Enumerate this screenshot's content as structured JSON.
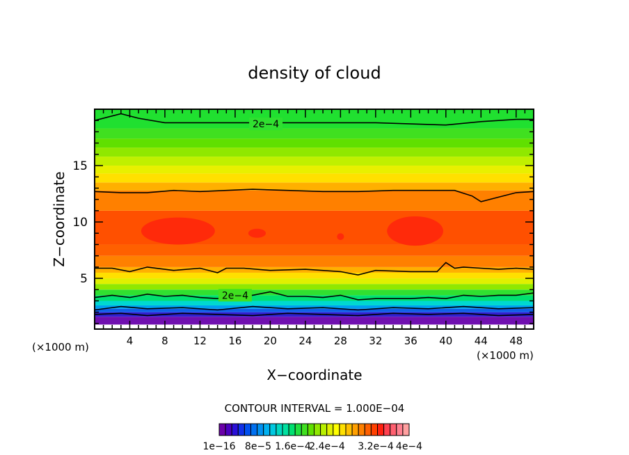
{
  "chart_data": {
    "type": "heatmap",
    "title": "density of cloud",
    "xlabel": "X−coordinate",
    "ylabel": "Z−coordinate",
    "x_unit": "(×1000 m)",
    "y_unit": "(×1000 m)",
    "xlim": [
      0,
      50
    ],
    "ylim": [
      0.5,
      20
    ],
    "x_ticks": [
      4,
      8,
      12,
      16,
      20,
      24,
      28,
      32,
      36,
      40,
      44,
      48
    ],
    "y_ticks": [
      5,
      10,
      15
    ],
    "contour_interval": "CONTOUR INTERVAL = 1.000E−04",
    "contour_labels": [
      {
        "text": "2e−4",
        "x": 19.5,
        "z": 18.7
      },
      {
        "text": "2e−4",
        "x": 16,
        "z": 3.5
      }
    ],
    "colorbar": {
      "labels": [
        "1e−16",
        "8e−5",
        "1.6e−4",
        "2.4e−4",
        "3.2e−4",
        "4e−4"
      ],
      "colors": [
        "#6a00a8",
        "#4b00c0",
        "#2a10d8",
        "#1030e8",
        "#0050f0",
        "#0070f0",
        "#0090f0",
        "#00b0f0",
        "#00c8e0",
        "#00d8c0",
        "#00e0a0",
        "#00e070",
        "#20e040",
        "#40e020",
        "#60e000",
        "#90e800",
        "#b8f000",
        "#e0f000",
        "#ffff00",
        "#ffe000",
        "#ffc000",
        "#ffa000",
        "#ff8000",
        "#ff6000",
        "#ff4000",
        "#ff2010",
        "#ff4050",
        "#ff6070",
        "#ff8090",
        "#ffa0a0"
      ]
    },
    "bands": [
      {
        "z": [
          0.9,
          1.6
        ],
        "color": "#7010b0"
      },
      {
        "z": [
          1.6,
          2.0
        ],
        "color": "#3020d0"
      },
      {
        "z": [
          2.0,
          2.3
        ],
        "color": "#1060e8"
      },
      {
        "z": [
          2.3,
          2.6
        ],
        "color": "#00a0f0"
      },
      {
        "z": [
          2.6,
          3.0
        ],
        "color": "#00d8d0"
      },
      {
        "z": [
          3.0,
          3.5
        ],
        "color": "#00e070"
      },
      {
        "z": [
          3.5,
          4.0
        ],
        "color": "#30e030"
      },
      {
        "z": [
          4.0,
          4.5
        ],
        "color": "#90e800"
      },
      {
        "z": [
          4.5,
          5.0
        ],
        "color": "#e0f000"
      },
      {
        "z": [
          5.0,
          5.5
        ],
        "color": "#ffe000"
      },
      {
        "z": [
          5.5,
          6.0
        ],
        "color": "#ffb000"
      },
      {
        "z": [
          6.0,
          7.0
        ],
        "color": "#ff8000"
      },
      {
        "z": [
          7.0,
          8.0
        ],
        "color": "#ff6000"
      },
      {
        "z": [
          8.0,
          11.0
        ],
        "color": "#ff5000"
      },
      {
        "z": [
          11.0,
          12.8
        ],
        "color": "#ff8000"
      },
      {
        "z": [
          12.8,
          13.5
        ],
        "color": "#ffb000"
      },
      {
        "z": [
          13.5,
          14.3
        ],
        "color": "#ffe000"
      },
      {
        "z": [
          14.3,
          15.0
        ],
        "color": "#e8f000"
      },
      {
        "z": [
          15.0,
          15.8
        ],
        "color": "#c0f000"
      },
      {
        "z": [
          15.8,
          16.6
        ],
        "color": "#90e800"
      },
      {
        "z": [
          16.6,
          17.4
        ],
        "color": "#60e000"
      },
      {
        "z": [
          17.4,
          18.3
        ],
        "color": "#40e020"
      },
      {
        "z": [
          18.3,
          20.0
        ],
        "color": "#20e030"
      }
    ],
    "cores": [
      {
        "x": 9.5,
        "z": 9.2,
        "rx": 4.2,
        "rz": 1.2,
        "color": "#ff2a0a"
      },
      {
        "x": 18.5,
        "z": 9.0,
        "rx": 1.0,
        "rz": 0.4,
        "color": "#ff2a0a"
      },
      {
        "x": 36.5,
        "z": 9.2,
        "rx": 3.2,
        "rz": 1.3,
        "color": "#ff2a0a"
      },
      {
        "x": 28.0,
        "z": 8.7,
        "rx": 0.4,
        "rz": 0.3,
        "color": "#ff2a0a"
      }
    ],
    "contours": [
      {
        "label": "2e−4",
        "x": [
          0,
          2,
          3,
          5,
          8,
          12,
          16,
          20,
          24,
          28,
          32,
          36,
          40,
          44,
          46,
          48,
          50
        ],
        "z": [
          19.0,
          19.4,
          19.6,
          19.2,
          18.8,
          18.8,
          18.8,
          18.8,
          18.8,
          18.8,
          18.8,
          18.7,
          18.6,
          18.9,
          19.0,
          19.1,
          19.1
        ]
      },
      {
        "label": "",
        "x": [
          0,
          3,
          6,
          9,
          12,
          15,
          18,
          22,
          26,
          30,
          34,
          38,
          41,
          43,
          44,
          46,
          48,
          50
        ],
        "z": [
          12.7,
          12.6,
          12.6,
          12.8,
          12.7,
          12.8,
          12.9,
          12.8,
          12.7,
          12.7,
          12.8,
          12.8,
          12.8,
          12.3,
          11.8,
          12.2,
          12.6,
          12.7
        ]
      },
      {
        "label": "",
        "x": [
          0,
          2,
          4,
          6,
          9,
          12,
          14,
          15,
          17,
          20,
          24,
          28,
          30,
          32,
          36,
          39,
          40,
          41,
          42,
          44,
          46,
          48,
          50
        ],
        "z": [
          5.9,
          5.9,
          5.6,
          6.0,
          5.7,
          5.9,
          5.5,
          5.9,
          5.9,
          5.7,
          5.8,
          5.6,
          5.3,
          5.7,
          5.6,
          5.6,
          6.4,
          5.9,
          6.0,
          5.9,
          5.8,
          5.9,
          5.8
        ]
      },
      {
        "label": "2e−4",
        "x": [
          0,
          2,
          4,
          6,
          8,
          10,
          12,
          14,
          16,
          18,
          20,
          22,
          24,
          26,
          28,
          30,
          32,
          34,
          36,
          38,
          40,
          42,
          44,
          46,
          48,
          50
        ],
        "z": [
          3.3,
          3.5,
          3.3,
          3.6,
          3.4,
          3.5,
          3.3,
          3.2,
          3.5,
          3.5,
          3.8,
          3.4,
          3.4,
          3.3,
          3.5,
          3.1,
          3.2,
          3.2,
          3.2,
          3.3,
          3.2,
          3.5,
          3.4,
          3.5,
          3.5,
          3.7
        ]
      },
      {
        "label": "",
        "x": [
          0,
          3,
          6,
          10,
          14,
          18,
          22,
          26,
          30,
          34,
          38,
          42,
          46,
          50
        ],
        "z": [
          2.2,
          2.5,
          2.3,
          2.4,
          2.2,
          2.5,
          2.3,
          2.4,
          2.2,
          2.4,
          2.3,
          2.5,
          2.3,
          2.4
        ]
      },
      {
        "label": "",
        "x": [
          0,
          3,
          6,
          10,
          14,
          18,
          22,
          26,
          30,
          34,
          38,
          42,
          46,
          50
        ],
        "z": [
          1.8,
          1.9,
          1.7,
          1.9,
          1.8,
          1.7,
          1.9,
          1.8,
          1.7,
          1.9,
          1.8,
          1.9,
          1.7,
          1.8
        ]
      }
    ]
  }
}
